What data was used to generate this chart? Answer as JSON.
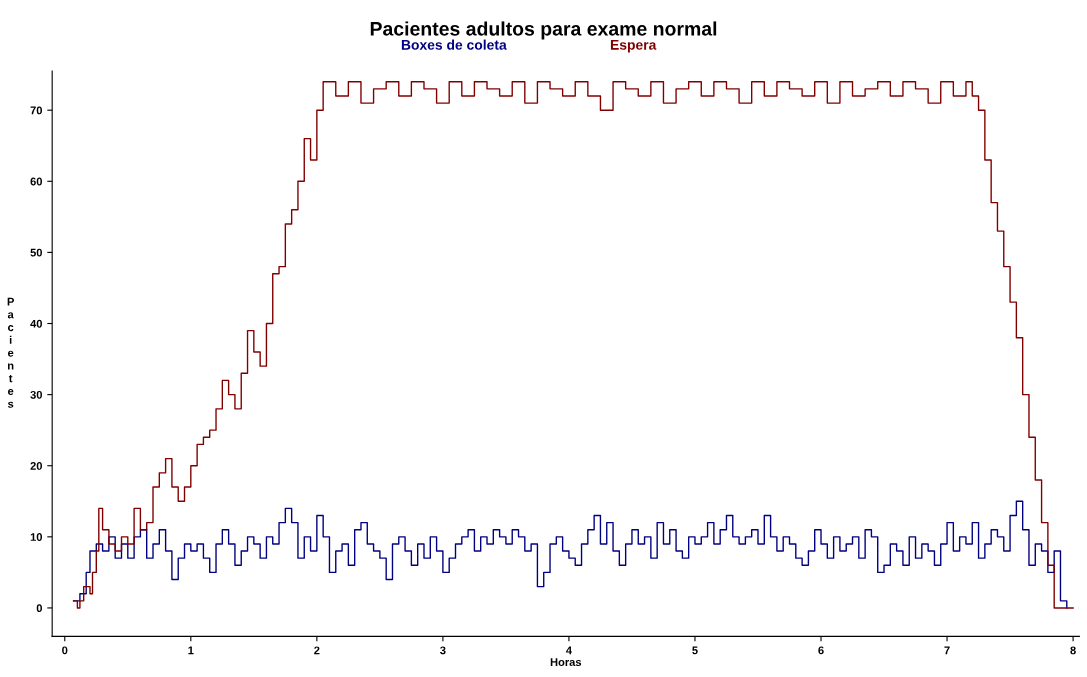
{
  "chart_data": {
    "type": "step",
    "title": "Pacientes adultos para exame normal",
    "xlabel": "Horas",
    "ylabel": "Pacientes",
    "xlim": [
      -0.1,
      8.05
    ],
    "ylim": [
      -4,
      75.5
    ],
    "xticks": [
      0,
      1,
      2,
      3,
      4,
      5,
      6,
      7,
      8
    ],
    "yticks": [
      0,
      10,
      20,
      30,
      40,
      50,
      60,
      70
    ],
    "grid": false,
    "legend": "top",
    "line_style": "solid",
    "marker": "none",
    "series": [
      {
        "name": "Boxes de coleta",
        "color": "#000080",
        "x": [
          0.07,
          0.12,
          0.17,
          0.2,
          0.25,
          0.3,
          0.35,
          0.4,
          0.45,
          0.5,
          0.55,
          0.6,
          0.65,
          0.7,
          0.75,
          0.8,
          0.85,
          0.9,
          0.95,
          1.0,
          1.05,
          1.1,
          1.15,
          1.2,
          1.25,
          1.3,
          1.35,
          1.4,
          1.45,
          1.5,
          1.55,
          1.6,
          1.65,
          1.7,
          1.75,
          1.8,
          1.85,
          1.9,
          1.95,
          2.0,
          2.05,
          2.1,
          2.15,
          2.2,
          2.25,
          2.3,
          2.35,
          2.4,
          2.45,
          2.5,
          2.55,
          2.6,
          2.65,
          2.7,
          2.75,
          2.8,
          2.85,
          2.9,
          2.95,
          3.0,
          3.05,
          3.1,
          3.15,
          3.2,
          3.25,
          3.3,
          3.35,
          3.4,
          3.45,
          3.5,
          3.55,
          3.6,
          3.65,
          3.7,
          3.75,
          3.8,
          3.85,
          3.9,
          3.95,
          4.0,
          4.05,
          4.1,
          4.15,
          4.2,
          4.25,
          4.3,
          4.35,
          4.4,
          4.45,
          4.5,
          4.55,
          4.6,
          4.65,
          4.7,
          4.75,
          4.8,
          4.85,
          4.9,
          4.95,
          5.0,
          5.05,
          5.1,
          5.15,
          5.2,
          5.25,
          5.3,
          5.35,
          5.4,
          5.45,
          5.5,
          5.55,
          5.6,
          5.65,
          5.7,
          5.75,
          5.8,
          5.85,
          5.9,
          5.95,
          6.0,
          6.05,
          6.1,
          6.15,
          6.2,
          6.25,
          6.3,
          6.35,
          6.4,
          6.45,
          6.5,
          6.55,
          6.6,
          6.65,
          6.7,
          6.75,
          6.8,
          6.85,
          6.9,
          6.95,
          7.0,
          7.05,
          7.1,
          7.15,
          7.2,
          7.25,
          7.3,
          7.35,
          7.4,
          7.45,
          7.5,
          7.55,
          7.6,
          7.65,
          7.7,
          7.75,
          7.8,
          7.85,
          7.9,
          7.95
        ],
        "values": [
          1,
          2,
          5,
          8,
          9,
          8,
          10,
          7,
          9,
          7,
          10,
          11,
          7,
          9,
          11,
          8,
          4,
          7,
          9,
          8,
          9,
          7,
          5,
          9,
          11,
          9,
          6,
          8,
          10,
          9,
          7,
          10,
          9,
          12,
          14,
          12,
          7,
          10,
          8,
          13,
          10,
          5,
          8,
          9,
          6,
          11,
          12,
          9,
          8,
          7,
          4,
          9,
          10,
          8,
          6,
          9,
          7,
          10,
          8,
          5,
          7,
          9,
          10,
          11,
          8,
          10,
          9,
          11,
          10,
          9,
          11,
          10,
          8,
          9,
          3,
          5,
          9,
          10,
          8,
          7,
          6,
          9,
          11,
          13,
          9,
          12,
          8,
          6,
          9,
          11,
          9,
          10,
          7,
          12,
          9,
          11,
          8,
          7,
          10,
          9,
          10,
          12,
          9,
          11,
          13,
          10,
          9,
          10,
          11,
          9,
          13,
          10,
          8,
          10,
          9,
          7,
          6,
          8,
          11,
          9,
          7,
          10,
          8,
          9,
          10,
          7,
          11,
          10,
          5,
          6,
          9,
          8,
          6,
          10,
          7,
          9,
          8,
          6,
          9,
          12,
          8,
          10,
          9,
          12,
          7,
          9,
          11,
          10,
          8,
          13,
          15,
          11,
          6,
          9,
          8,
          5,
          8,
          1,
          0
        ]
      },
      {
        "name": "Espera",
        "color": "#800000",
        "x": [
          0.07,
          0.1,
          0.12,
          0.15,
          0.2,
          0.22,
          0.25,
          0.27,
          0.3,
          0.35,
          0.4,
          0.45,
          0.5,
          0.55,
          0.6,
          0.65,
          0.7,
          0.75,
          0.8,
          0.85,
          0.9,
          0.95,
          1.0,
          1.05,
          1.1,
          1.15,
          1.2,
          1.25,
          1.3,
          1.35,
          1.4,
          1.45,
          1.5,
          1.55,
          1.6,
          1.65,
          1.7,
          1.75,
          1.8,
          1.85,
          1.9,
          1.95,
          2.0,
          2.05,
          2.15,
          2.25,
          2.35,
          2.45,
          2.55,
          2.65,
          2.75,
          2.85,
          2.95,
          3.05,
          3.15,
          3.25,
          3.35,
          3.45,
          3.55,
          3.65,
          3.75,
          3.85,
          3.95,
          4.05,
          4.15,
          4.25,
          4.35,
          4.45,
          4.55,
          4.65,
          4.75,
          4.85,
          4.95,
          5.05,
          5.15,
          5.25,
          5.35,
          5.45,
          5.55,
          5.65,
          5.75,
          5.85,
          5.95,
          6.05,
          6.15,
          6.25,
          6.35,
          6.45,
          6.55,
          6.65,
          6.75,
          6.85,
          6.95,
          7.05,
          7.15,
          7.2,
          7.25,
          7.3,
          7.35,
          7.4,
          7.45,
          7.5,
          7.55,
          7.6,
          7.65,
          7.7,
          7.75,
          7.8,
          7.85,
          8.0
        ],
        "values": [
          1,
          0,
          1,
          3,
          2,
          5,
          8,
          14,
          11,
          9,
          8,
          10,
          9,
          14,
          11,
          12,
          17,
          19,
          21,
          17,
          15,
          17,
          20,
          23,
          24,
          25,
          28,
          32,
          30,
          28,
          33,
          39,
          36,
          34,
          40,
          47,
          48,
          54,
          56,
          60,
          66,
          63,
          70,
          74,
          72,
          74,
          71,
          73,
          74,
          72,
          74,
          73,
          71,
          74,
          72,
          74,
          73,
          72,
          74,
          71,
          74,
          73,
          72,
          74,
          72,
          70,
          74,
          73,
          72,
          74,
          71,
          73,
          74,
          72,
          74,
          73,
          71,
          74,
          72,
          74,
          73,
          72,
          74,
          71,
          74,
          72,
          73,
          74,
          72,
          74,
          73,
          71,
          74,
          72,
          74,
          72,
          70,
          63,
          57,
          53,
          48,
          43,
          38,
          30,
          24,
          18,
          12,
          6,
          0,
          0
        ]
      }
    ]
  }
}
